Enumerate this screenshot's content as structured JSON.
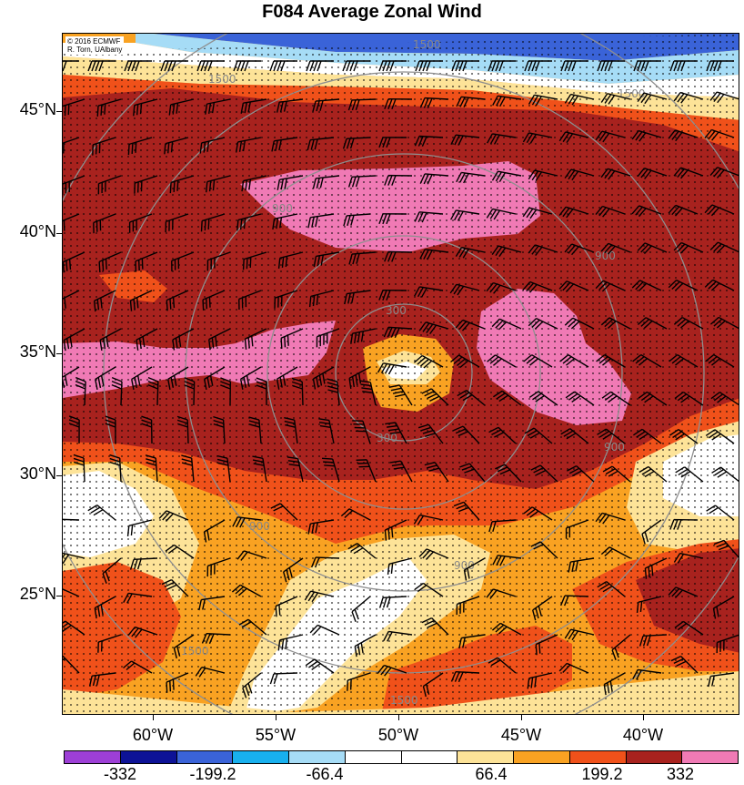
{
  "title": "F084 Average Zonal Wind",
  "credit": [
    "© 2016 ECMWF",
    "R. Torn, UAlbany"
  ],
  "lat_labels": [
    "45°N",
    "40°N",
    "35°N",
    "30°N",
    "25°N"
  ],
  "lon_labels": [
    "60°W",
    "55°W",
    "50°W",
    "45°W",
    "40°W"
  ],
  "colorbar": {
    "colors": [
      "#9d3fd6",
      "#0d1296",
      "#3a63d8",
      "#18b0ee",
      "#a6dcf6",
      "#ffffff",
      "#ffffff",
      "#fde398",
      "#f9a222",
      "#f0511a",
      "#a8221e",
      "#f07ab5"
    ],
    "labels": [
      "-332",
      "-199.2",
      "-66.4",
      "66.4",
      "199.2",
      "332"
    ]
  },
  "contour_labels": [
    "1500",
    "1500",
    "1500",
    "900",
    "900",
    "300",
    "300",
    "900",
    "900",
    "900",
    "1500",
    "1500"
  ],
  "fill_colors": {
    "darkred": "#a8221e",
    "pink": "#f07ab5",
    "redorange": "#f0511a",
    "orange": "#f9a222",
    "yellow": "#fde398",
    "white": "#ffffff",
    "lightblue": "#a6dcf6",
    "blue": "#3a63d8"
  }
}
